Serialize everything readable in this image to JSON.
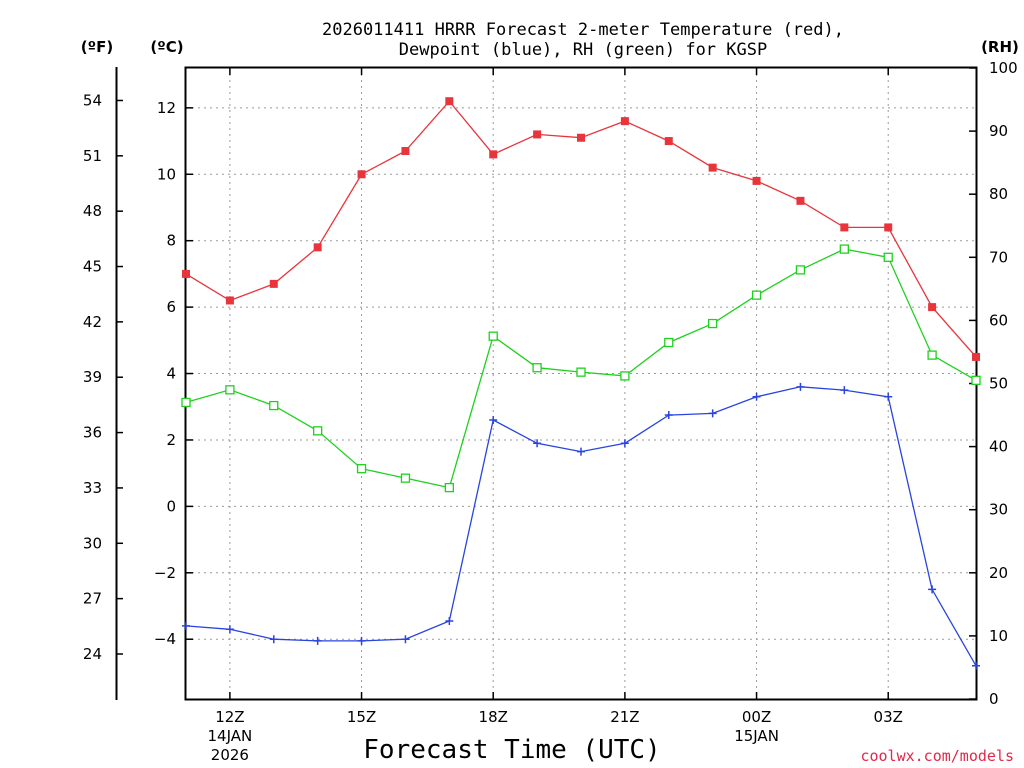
{
  "chart_data": {
    "type": "line",
    "title_lines": [
      "2026011411 HRRR Forecast 2-meter Temperature (red),",
      "Dewpoint (blue), RH (green) for KGSP"
    ],
    "xlabel": "Forecast Time (UTC)",
    "credit": "coolwx.com/models",
    "units": {
      "fahrenheit": "(ºF)",
      "celsius": "(ºC)",
      "rh": "(RH)"
    },
    "hours": [
      11,
      12,
      13,
      14,
      15,
      16,
      17,
      18,
      19,
      20,
      21,
      22,
      23,
      24,
      25,
      26,
      27,
      28,
      29
    ],
    "x_ticks": [
      {
        "hour": 12,
        "label": "12Z",
        "date": "14JAN",
        "year": "2026"
      },
      {
        "hour": 15,
        "label": "15Z",
        "date": "",
        "year": ""
      },
      {
        "hour": 18,
        "label": "18Z",
        "date": "",
        "year": ""
      },
      {
        "hour": 21,
        "label": "21Z",
        "date": "",
        "year": ""
      },
      {
        "hour": 24,
        "label": "00Z",
        "date": "15JAN",
        "year": ""
      },
      {
        "hour": 27,
        "label": "03Z",
        "date": "",
        "year": ""
      }
    ],
    "xlim": [
      11,
      29
    ],
    "celsius_axis": {
      "range": [
        -5.8,
        13.2
      ],
      "ticks": [
        -4,
        -2,
        0,
        2,
        4,
        6,
        8,
        10,
        12
      ]
    },
    "fahrenheit_axis": {
      "ticks": [
        24,
        27,
        30,
        33,
        36,
        39,
        42,
        45,
        48,
        51,
        54
      ]
    },
    "rh_axis": {
      "range": [
        0,
        100
      ],
      "ticks": [
        0,
        10,
        20,
        30,
        40,
        50,
        60,
        70,
        80,
        90,
        100
      ]
    },
    "series": [
      {
        "name": "Temperature",
        "axis": "celsius",
        "color": "#e8353b",
        "marker": "filled-square",
        "values": [
          7.0,
          6.2,
          6.7,
          7.8,
          10.0,
          10.7,
          12.2,
          10.6,
          11.2,
          11.1,
          11.6,
          11.0,
          10.2,
          9.8,
          9.2,
          8.4,
          8.4,
          6.0,
          4.5
        ]
      },
      {
        "name": "Dewpoint",
        "axis": "celsius",
        "color": "#2a44e0",
        "marker": "plus",
        "values": [
          -3.6,
          -3.7,
          -4.0,
          -4.05,
          -4.05,
          -4.0,
          -3.45,
          2.6,
          1.9,
          1.65,
          1.9,
          2.75,
          2.8,
          3.3,
          3.6,
          3.5,
          3.3,
          -2.5,
          -4.8
        ]
      },
      {
        "name": "RH",
        "axis": "rh",
        "color": "#1ed11e",
        "marker": "open-square",
        "values": [
          47,
          49,
          46.5,
          42.5,
          36.5,
          35,
          33.5,
          57.5,
          52.5,
          51.8,
          51.2,
          56.5,
          59.5,
          64,
          68,
          71.3,
          70,
          54.5,
          50.5
        ]
      }
    ]
  }
}
